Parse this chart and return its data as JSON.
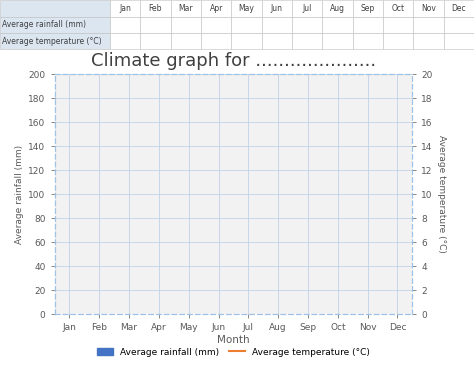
{
  "title": "Climate graph for .....................",
  "months": [
    "Jan",
    "Feb",
    "Mar",
    "Apr",
    "May",
    "Jun",
    "Jul",
    "Aug",
    "Sep",
    "Oct",
    "Nov",
    "Dec"
  ],
  "xlabel": "Month",
  "ylabel_left": "Average rainfall (mm)",
  "ylabel_right": "Average temperature (°C)",
  "ylim_left": [
    0,
    200
  ],
  "ylim_right": [
    0,
    20
  ],
  "yticks_left": [
    0,
    20,
    40,
    60,
    80,
    100,
    120,
    140,
    160,
    180,
    200
  ],
  "yticks_right": [
    0,
    2,
    4,
    6,
    8,
    10,
    12,
    14,
    16,
    18,
    20
  ],
  "bar_color": "#4472c4",
  "line_color": "#ed7d31",
  "grid_color": "#b8cce4",
  "border_color": "#9dc3e6",
  "background_color": "#ffffff",
  "title_fontsize": 13,
  "axis_label_fontsize": 6.5,
  "tick_fontsize": 6.5,
  "legend_fontsize": 6.5,
  "table_row1": "Average rainfall (mm)",
  "table_row2": "Average temperature (°C)"
}
